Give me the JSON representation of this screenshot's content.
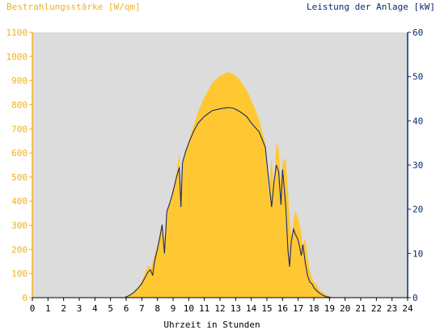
{
  "chart_data": {
    "type": "area",
    "title_left": "Bestrahlungsstärke [W/qm]",
    "title_right": "Leistung der Anlage [kW]",
    "xlabel": "Uhrzeit in Stunden",
    "x_ticks": [
      "0",
      "1",
      "2",
      "3",
      "4",
      "5",
      "6",
      "7",
      "8",
      "9",
      "10",
      "11",
      "12",
      "13",
      "14",
      "15",
      "16",
      "17",
      "18",
      "19",
      "20",
      "21",
      "22",
      "23",
      "24"
    ],
    "y_left_ticks": [
      "0",
      "100",
      "200",
      "300",
      "400",
      "500",
      "600",
      "700",
      "800",
      "900",
      "1000",
      "1100"
    ],
    "y_right_ticks": [
      "0",
      "10",
      "20",
      "30",
      "40",
      "50",
      "60"
    ],
    "y_left_range": [
      0,
      1100
    ],
    "y_right_range": [
      0,
      60
    ],
    "x_range": [
      0,
      24
    ],
    "grid": false,
    "colors": {
      "irradiance_fill": "#FFC832",
      "power_line": "#1A2A6B",
      "plot_background": "#DCDCDC",
      "left_axis": "#F0B020",
      "right_axis": "#0A2A70",
      "axis_text": "#000000"
    },
    "series": [
      {
        "name": "Bestrahlungsstärke [W/qm]",
        "axis": "left",
        "style": "area",
        "x": [
          0,
          5.9,
          6.2,
          6.5,
          6.8,
          7.0,
          7.2,
          7.4,
          7.6,
          7.8,
          8.0,
          8.2,
          8.3,
          8.45,
          8.6,
          8.8,
          9.0,
          9.2,
          9.4,
          9.5,
          9.6,
          9.8,
          10.0,
          10.3,
          10.6,
          11.0,
          11.5,
          12.0,
          12.5,
          12.8,
          13.0,
          13.3,
          13.7,
          14.0,
          14.5,
          14.9,
          15.1,
          15.3,
          15.45,
          15.6,
          15.75,
          15.9,
          16.0,
          16.2,
          16.35,
          16.5,
          16.6,
          16.7,
          16.8,
          17.0,
          17.2,
          17.3,
          17.45,
          17.6,
          17.75,
          17.9,
          18.0,
          18.2,
          18.4,
          18.6,
          18.8,
          19.0,
          19.1,
          19.3,
          24
        ],
        "values": [
          0,
          0,
          10,
          25,
          45,
          70,
          100,
          135,
          120,
          175,
          215,
          285,
          310,
          230,
          360,
          400,
          450,
          510,
          600,
          420,
          560,
          610,
          650,
          710,
          770,
          830,
          890,
          920,
          935,
          930,
          920,
          900,
          860,
          820,
          740,
          640,
          430,
          580,
          450,
          640,
          620,
          470,
          560,
          580,
          440,
          290,
          250,
          320,
          360,
          330,
          270,
          210,
          250,
          170,
          110,
          80,
          65,
          50,
          30,
          20,
          12,
          6,
          3,
          0,
          0
        ]
      },
      {
        "name": "Leistung der Anlage [kW]",
        "axis": "right",
        "style": "line",
        "x": [
          0,
          5.9,
          6.2,
          6.5,
          6.8,
          7.0,
          7.2,
          7.4,
          7.55,
          7.7,
          7.8,
          8.0,
          8.2,
          8.3,
          8.45,
          8.6,
          8.8,
          9.0,
          9.2,
          9.4,
          9.5,
          9.6,
          9.8,
          10.0,
          10.3,
          10.6,
          11.0,
          11.5,
          12.0,
          12.5,
          12.8,
          13.0,
          13.3,
          13.7,
          14.0,
          14.5,
          14.9,
          15.1,
          15.3,
          15.45,
          15.6,
          15.75,
          15.9,
          16.0,
          16.2,
          16.35,
          16.45,
          16.55,
          16.7,
          16.8,
          17.0,
          17.2,
          17.3,
          17.45,
          17.6,
          17.75,
          17.9,
          18.0,
          18.2,
          18.4,
          18.6,
          18.8,
          19.0,
          19.1,
          19.3,
          24
        ],
        "values": [
          0,
          0,
          0.5,
          1.2,
          2.3,
          3.2,
          4.5,
          5.8,
          6.3,
          5.0,
          8.0,
          11.0,
          14.5,
          16.5,
          10.0,
          19.5,
          21.5,
          24.0,
          27.0,
          29.5,
          20.5,
          30.5,
          33.0,
          35.0,
          37.5,
          39.5,
          41.0,
          42.3,
          42.7,
          43.0,
          42.9,
          42.6,
          42.0,
          41.0,
          39.5,
          37.5,
          34.0,
          27.0,
          20.5,
          26.0,
          30.0,
          28.5,
          21.0,
          29.0,
          21.0,
          10.5,
          7.0,
          12.5,
          15.5,
          14.5,
          13.0,
          9.5,
          12.0,
          8.0,
          5.0,
          3.5,
          3.0,
          2.3,
          1.5,
          0.9,
          0.5,
          0.2,
          0.1,
          0,
          0,
          0
        ]
      }
    ]
  }
}
